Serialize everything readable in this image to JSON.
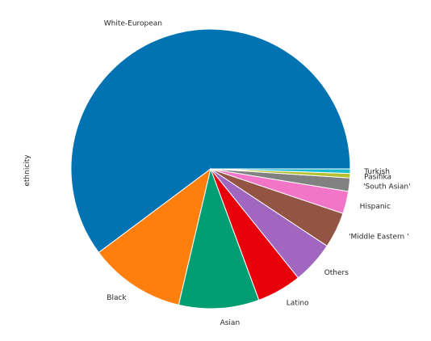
{
  "chart_data": {
    "type": "pie",
    "ylabel": "ethnicity",
    "slices": [
      {
        "label": "White-European",
        "value": 233,
        "color": "#0173b2"
      },
      {
        "label": "Black",
        "value": 43,
        "color": "#ff7f0e"
      },
      {
        "label": "Asian",
        "value": 36,
        "color": "#029e73"
      },
      {
        "label": "Latino",
        "value": 20,
        "color": "#e8000b"
      },
      {
        "label": "Others",
        "value": 19,
        "color": "#a066c0"
      },
      {
        "label": "'Middle Eastern '",
        "value": 16,
        "color": "#935444"
      },
      {
        "label": "Hispanic",
        "value": 10,
        "color": "#f375c8"
      },
      {
        "label": "'South Asian'",
        "value": 6,
        "color": "#818181"
      },
      {
        "label": "Pasifika",
        "value": 2,
        "color": "#b5c032"
      },
      {
        "label": "Turkish",
        "value": 2,
        "color": "#1cbcd0"
      }
    ],
    "start_angle": "0 (east), counter-clockwise",
    "legend": "none"
  }
}
